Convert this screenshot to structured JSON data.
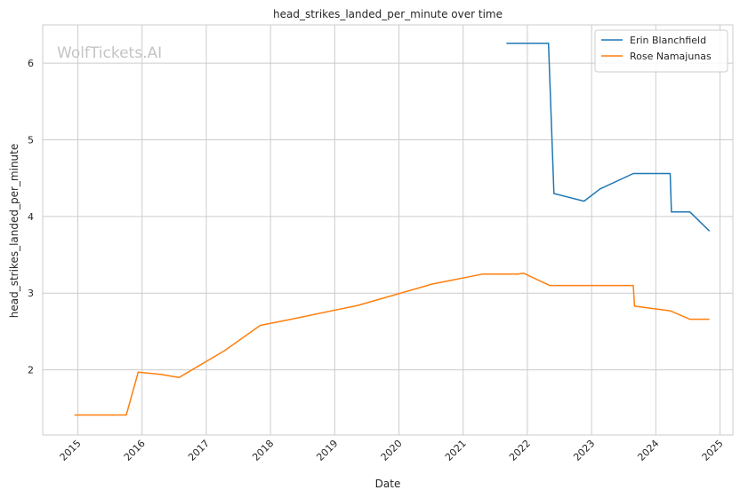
{
  "chart_data": {
    "type": "line",
    "title": "head_strikes_landed_per_minute over time",
    "xlabel": "Date",
    "ylabel": "head_strikes_landed_per_minute",
    "watermark": "WolfTickets.AI",
    "x_ticks": [
      "2015",
      "2016",
      "2017",
      "2018",
      "2019",
      "2020",
      "2021",
      "2022",
      "2023",
      "2024",
      "2025"
    ],
    "y_ticks": [
      "2",
      "3",
      "4",
      "5",
      "6"
    ],
    "xlim": [
      "2014-06-15",
      "2025-03-15"
    ],
    "ylim": [
      1.15,
      6.5
    ],
    "grid": true,
    "legend_position": "top-right",
    "series": [
      {
        "name": "Erin Blanchfield",
        "color": "#1f77b4",
        "points": [
          {
            "x": "2021-09-04",
            "y": 6.26
          },
          {
            "x": "2022-05-01",
            "y": 6.26
          },
          {
            "x": "2022-06-01",
            "y": 4.3
          },
          {
            "x": "2022-11-19",
            "y": 4.2
          },
          {
            "x": "2023-02-18",
            "y": 4.36
          },
          {
            "x": "2023-08-26",
            "y": 4.56
          },
          {
            "x": "2024-03-23",
            "y": 4.56
          },
          {
            "x": "2024-03-30",
            "y": 4.06
          },
          {
            "x": "2024-07-13",
            "y": 4.06
          },
          {
            "x": "2024-11-02",
            "y": 3.81
          }
        ]
      },
      {
        "name": "Rose Namajunas",
        "color": "#ff7f0e",
        "points": [
          {
            "x": "2014-12-12",
            "y": 1.41
          },
          {
            "x": "2015-10-03",
            "y": 1.41
          },
          {
            "x": "2015-12-10",
            "y": 1.97
          },
          {
            "x": "2016-04-16",
            "y": 1.94
          },
          {
            "x": "2016-07-30",
            "y": 1.9
          },
          {
            "x": "2017-04-15",
            "y": 2.25
          },
          {
            "x": "2017-11-04",
            "y": 2.58
          },
          {
            "x": "2018-04-07",
            "y": 2.65
          },
          {
            "x": "2019-05-11",
            "y": 2.84
          },
          {
            "x": "2020-07-11",
            "y": 3.12
          },
          {
            "x": "2021-04-24",
            "y": 3.25
          },
          {
            "x": "2021-11-06",
            "y": 3.25
          },
          {
            "x": "2021-12-11",
            "y": 3.26
          },
          {
            "x": "2022-05-07",
            "y": 3.1
          },
          {
            "x": "2023-08-26",
            "y": 3.1
          },
          {
            "x": "2023-09-02",
            "y": 2.83
          },
          {
            "x": "2024-03-23",
            "y": 2.77
          },
          {
            "x": "2024-07-13",
            "y": 2.66
          },
          {
            "x": "2024-11-02",
            "y": 2.66
          }
        ]
      }
    ]
  }
}
